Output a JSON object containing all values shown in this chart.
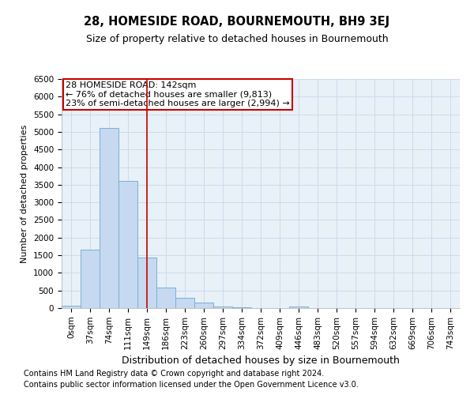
{
  "title": "28, HOMESIDE ROAD, BOURNEMOUTH, BH9 3EJ",
  "subtitle": "Size of property relative to detached houses in Bournemouth",
  "xlabel": "Distribution of detached houses by size in Bournemouth",
  "ylabel": "Number of detached properties",
  "bin_labels": [
    "0sqm",
    "37sqm",
    "74sqm",
    "111sqm",
    "149sqm",
    "186sqm",
    "223sqm",
    "260sqm",
    "297sqm",
    "334sqm",
    "372sqm",
    "409sqm",
    "446sqm",
    "483sqm",
    "520sqm",
    "557sqm",
    "594sqm",
    "632sqm",
    "669sqm",
    "706sqm",
    "743sqm"
  ],
  "bar_heights": [
    60,
    1650,
    5100,
    3600,
    1430,
    580,
    300,
    150,
    50,
    25,
    10,
    5,
    50,
    0,
    0,
    0,
    0,
    0,
    0,
    0,
    0
  ],
  "bar_color": "#c6d9f0",
  "bar_edge_color": "#7ab0d4",
  "grid_color": "#c8d8ea",
  "background_color": "#e8f0f8",
  "annotation_line1": "28 HOMESIDE ROAD: 142sqm",
  "annotation_line2": "← 76% of detached houses are smaller (9,813)",
  "annotation_line3": "23% of semi-detached houses are larger (2,994) →",
  "annotation_box_color": "#cc0000",
  "vline_x": 4.0,
  "vline_color": "#cc0000",
  "ylim": [
    0,
    6500
  ],
  "yticks": [
    0,
    500,
    1000,
    1500,
    2000,
    2500,
    3000,
    3500,
    4000,
    4500,
    5000,
    5500,
    6000,
    6500
  ],
  "footnote1": "Contains HM Land Registry data © Crown copyright and database right 2024.",
  "footnote2": "Contains public sector information licensed under the Open Government Licence v3.0.",
  "title_fontsize": 10.5,
  "subtitle_fontsize": 9,
  "xlabel_fontsize": 9,
  "ylabel_fontsize": 8,
  "tick_fontsize": 7.5,
  "annotation_fontsize": 8,
  "footnote_fontsize": 7
}
